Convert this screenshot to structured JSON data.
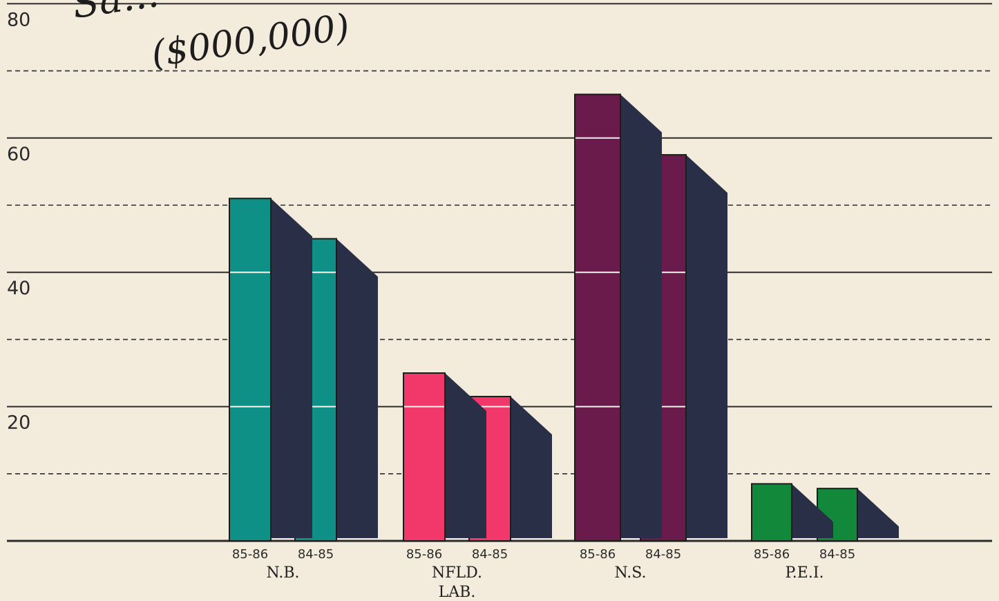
{
  "chart_data": {
    "type": "bar",
    "title": "Sa...",
    "ylabel": "($000,000)",
    "ylim": [
      0,
      80
    ],
    "yticks": [
      "20",
      "40",
      "60",
      "80"
    ],
    "grid": true,
    "groups": [
      {
        "name": "N.B.",
        "name_lines": [
          "N.B."
        ],
        "color": "#0e9087",
        "bars": [
          {
            "label": "85-86",
            "value": 51
          },
          {
            "label": "84-85",
            "value": 45
          }
        ]
      },
      {
        "name": "NFLD. LAB.",
        "name_lines": [
          "NFLD.",
          "LAB."
        ],
        "color": "#f2386a",
        "bars": [
          {
            "label": "85-86",
            "value": 25
          },
          {
            "label": "84-85",
            "value": 21.5
          }
        ]
      },
      {
        "name": "N.S.",
        "name_lines": [
          "N.S."
        ],
        "color": "#6b1a4c",
        "bars": [
          {
            "label": "85-86",
            "value": 66.5
          },
          {
            "label": "84-85",
            "value": 57.5
          }
        ]
      },
      {
        "name": "P.E.I.",
        "name_lines": [
          "P.E.I."
        ],
        "color": "#12883a",
        "bars": [
          {
            "label": "85-86",
            "value": 8.5
          },
          {
            "label": "84-85",
            "value": 7.8
          }
        ]
      }
    ]
  },
  "colors": {
    "background": "#f3ecdc",
    "shadow": "#2a2f48",
    "gridline": "#2b2b2b"
  }
}
